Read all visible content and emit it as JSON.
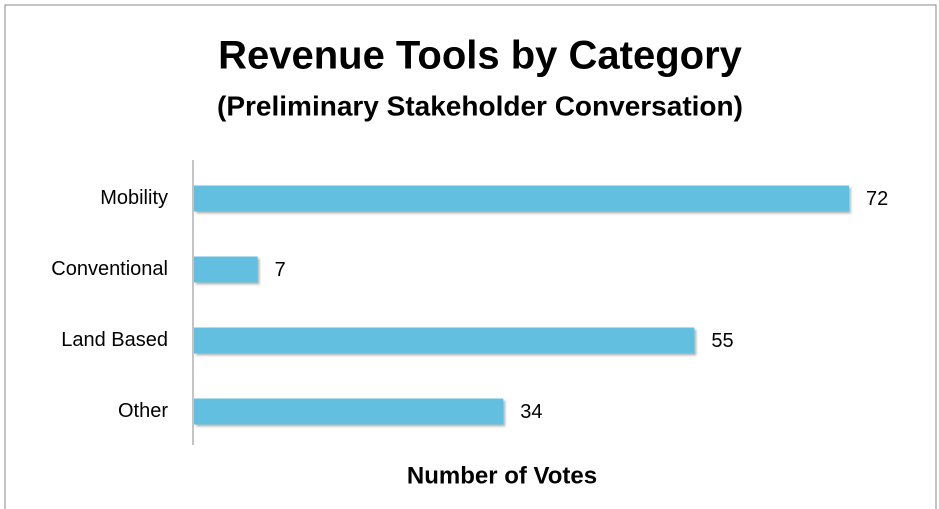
{
  "chart_data": {
    "type": "bar",
    "orientation": "horizontal",
    "title": "Revenue Tools by Category",
    "subtitle": "(Preliminary Stakeholder Conversation)",
    "x_label": "Number of Votes",
    "categories": [
      "Mobility",
      "Conventional",
      "Land Based",
      "Other"
    ],
    "values": [
      72,
      7,
      55,
      34
    ],
    "color": "#63bfe0",
    "xlim": [
      0,
      72
    ]
  }
}
